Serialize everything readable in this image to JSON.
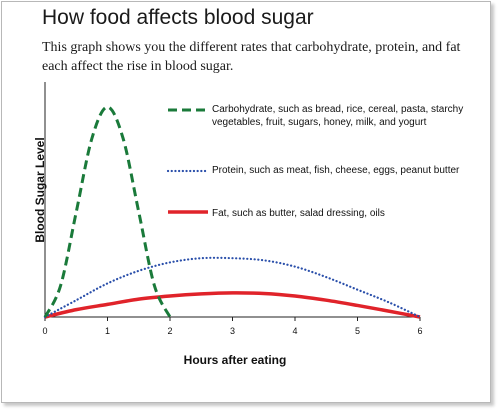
{
  "header": {
    "title": "How food affects blood sugar",
    "subtitle": "This graph shows you the different rates that carbohydrate, protein, and fat each affect the rise in blood sugar."
  },
  "chart_data": {
    "type": "line",
    "xlabel": "Hours after eating",
    "ylabel": "Blood Sugar Level",
    "xlim": [
      0,
      6
    ],
    "x_ticks": [
      "0",
      "1",
      "2",
      "3",
      "4",
      "5",
      "6"
    ],
    "ylim": [
      0,
      1
    ],
    "grid": false,
    "legend_position": "top-right",
    "series": [
      {
        "name": "Carbohydrate, such as bread, rice, cereal, pasta, starchy vegetables, fruit, sugars, honey, milk, and yogurt",
        "color": "#1a7a3a",
        "style": "dashed",
        "x": [
          0,
          0.25,
          0.5,
          0.75,
          1.0,
          1.25,
          1.5,
          1.75,
          2.0
        ],
        "y": [
          0.0,
          0.15,
          0.5,
          0.85,
          1.0,
          0.85,
          0.5,
          0.15,
          0.0
        ]
      },
      {
        "name": "Protein, such as meat, fish, cheese, eggs, peanut butter",
        "color": "#2a4faa",
        "style": "dotted",
        "x": [
          0,
          0.5,
          1.0,
          1.5,
          2.0,
          2.5,
          3.0,
          3.5,
          4.0,
          4.5,
          5.0,
          5.5,
          6.0
        ],
        "y": [
          0.0,
          0.08,
          0.16,
          0.22,
          0.26,
          0.28,
          0.28,
          0.27,
          0.24,
          0.19,
          0.13,
          0.07,
          0.0
        ]
      },
      {
        "name": "Fat, such as butter, salad dressing, oils",
        "color": "#e0232a",
        "style": "solid",
        "x": [
          0,
          0.5,
          1.0,
          1.5,
          2.0,
          2.5,
          3.0,
          3.5,
          4.0,
          4.5,
          5.0,
          5.5,
          6.0
        ],
        "y": [
          0.0,
          0.035,
          0.06,
          0.085,
          0.1,
          0.11,
          0.115,
          0.112,
          0.1,
          0.08,
          0.055,
          0.028,
          0.0
        ]
      }
    ]
  }
}
